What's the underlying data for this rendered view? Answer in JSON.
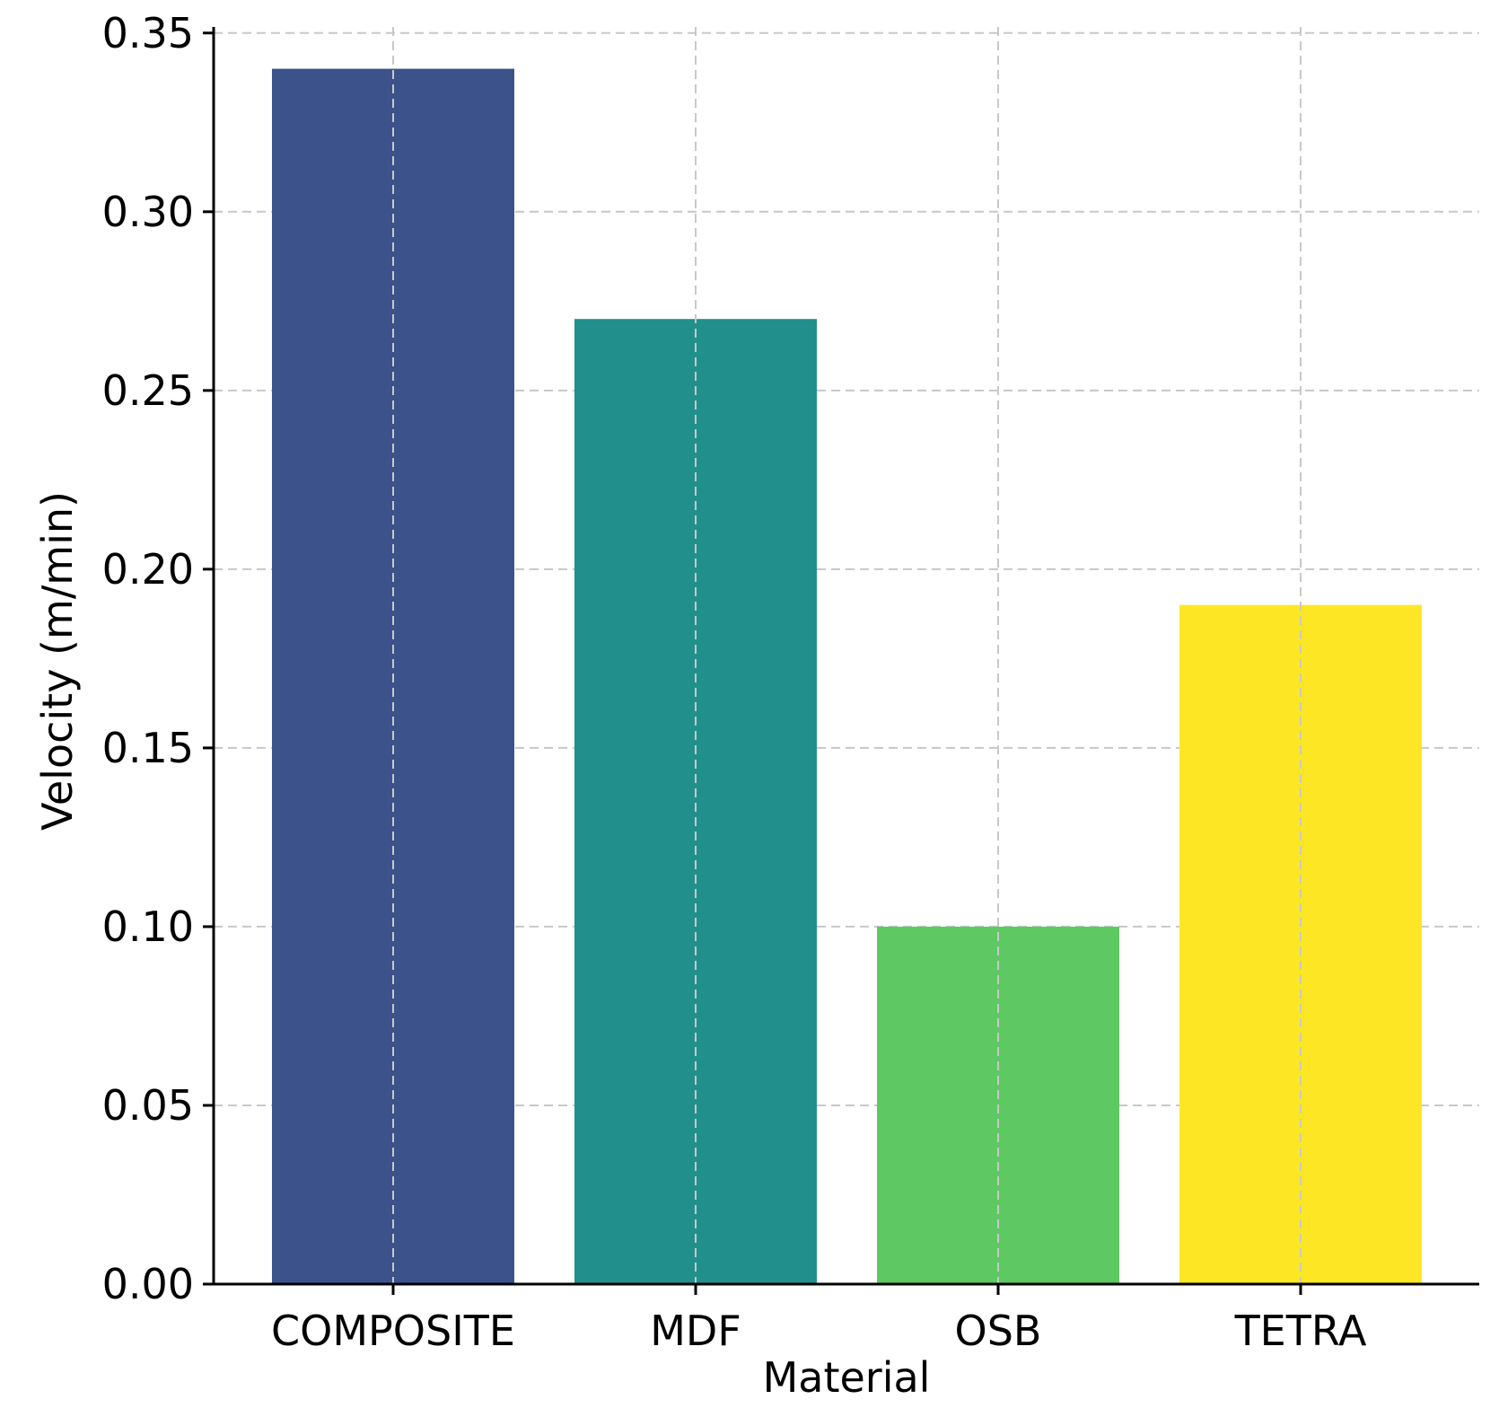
{
  "chart_data": {
    "type": "bar",
    "title": "",
    "xlabel": "Material",
    "ylabel": "Velocity (m/min)",
    "categories": [
      "COMPOSITE",
      "MDF",
      "OSB",
      "TETRA"
    ],
    "values": [
      0.34,
      0.27,
      0.1,
      0.19
    ],
    "colors": [
      "#3b528b",
      "#21908d",
      "#5ec962",
      "#fde725"
    ],
    "ylim": [
      0,
      0.35
    ],
    "yticks": [
      "0.00",
      "0.05",
      "0.10",
      "0.15",
      "0.20",
      "0.25",
      "0.30",
      "0.35"
    ],
    "grid": true,
    "legend": "none"
  }
}
